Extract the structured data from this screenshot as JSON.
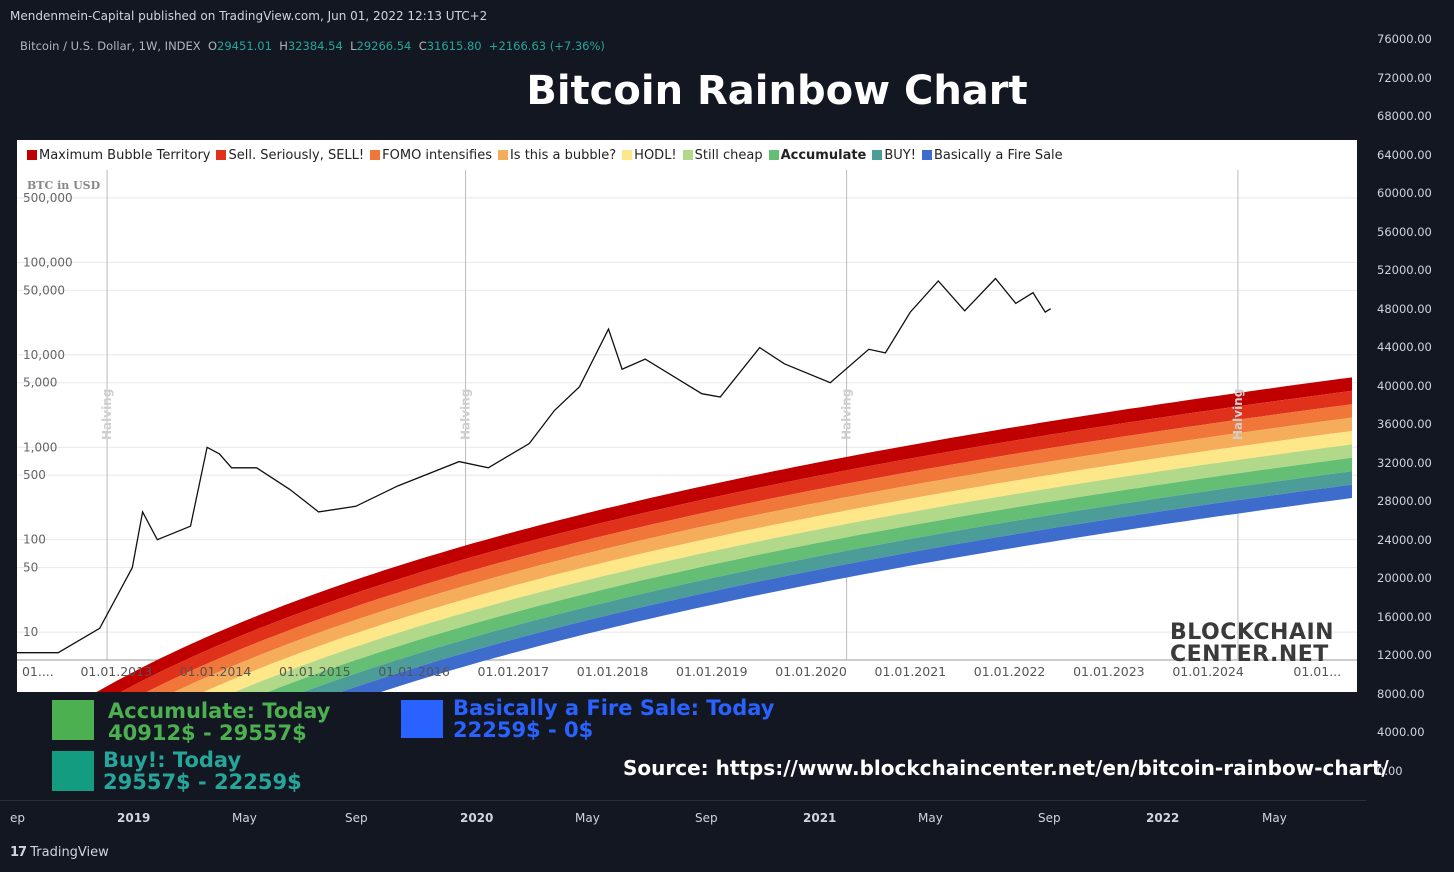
{
  "publisher": "Mendenmein-Capital published on TradingView.com, Jun 01, 2022 12:13 UTC+2",
  "symbol": {
    "name": "Bitcoin / U.S. Dollar, 1W, INDEX",
    "o_label": "O",
    "o": "29451.01",
    "h_label": "H",
    "h": "32384.54",
    "l_label": "L",
    "l": "29266.54",
    "c_label": "C",
    "c": "31615.80",
    "change": "+2166.63 (+7.36%)"
  },
  "title": "Bitcoin Rainbow Chart",
  "price_axis": [
    "76000.00",
    "72000.00",
    "68000.00",
    "64000.00",
    "60000.00",
    "56000.00",
    "52000.00",
    "48000.00",
    "44000.00",
    "40000.00",
    "36000.00",
    "32000.00",
    "28000.00",
    "24000.00",
    "20000.00",
    "16000.00",
    "12000.00",
    "8000.00",
    "4000.00",
    "0.00"
  ],
  "time_axis": [
    {
      "label": "ep",
      "bold": false
    },
    {
      "label": "2019",
      "bold": true
    },
    {
      "label": "May",
      "bold": false
    },
    {
      "label": "Sep",
      "bold": false
    },
    {
      "label": "2020",
      "bold": true
    },
    {
      "label": "May",
      "bold": false
    },
    {
      "label": "Sep",
      "bold": false
    },
    {
      "label": "2021",
      "bold": true
    },
    {
      "label": "May",
      "bold": false
    },
    {
      "label": "Sep",
      "bold": false
    },
    {
      "label": "2022",
      "bold": true
    },
    {
      "label": "May",
      "bold": false
    }
  ],
  "chart_data": {
    "type": "area",
    "title": "Bitcoin Rainbow Chart",
    "ylabel": "BTC in USD",
    "y_scale": "log",
    "ylim": [
      5,
      1000000
    ],
    "y_ticks": [
      "500,000",
      "100,000",
      "50,000",
      "10,000",
      "5,000",
      "1,000",
      "500",
      "100",
      "50",
      "10"
    ],
    "x_ticks": [
      "01....",
      "01.01.2013",
      "01.01.2014",
      "01.01.2015",
      "01.01.2016",
      "01.01.2017",
      "01.01.2018",
      "01.01.2019",
      "01.01.2020",
      "01.01.2021",
      "01.01.2022",
      "01.01.2023",
      "01.01.2024",
      "01.01..."
    ],
    "halving_label": "Halving",
    "halvings": [
      "2012-11-28",
      "2016-07-09",
      "2020-05-11",
      "2024-04-20"
    ],
    "legend_position": "top-left",
    "bands": [
      {
        "name": "Maximum Bubble Territory",
        "color": "#c00000",
        "bold": false
      },
      {
        "name": "Sell. Seriously, SELL!",
        "color": "#e0311b",
        "bold": false
      },
      {
        "name": "FOMO intensifies",
        "color": "#f0763a",
        "bold": false
      },
      {
        "name": "Is this a bubble?",
        "color": "#f5ad5c",
        "bold": false
      },
      {
        "name": "HODL!",
        "color": "#fde788",
        "bold": false
      },
      {
        "name": "Still cheap",
        "color": "#b2d98a",
        "bold": false
      },
      {
        "name": "Accumulate",
        "color": "#64be73",
        "bold": true
      },
      {
        "name": "BUY!",
        "color": "#4c9c98",
        "bold": false
      },
      {
        "name": "Basically a Fire Sale",
        "color": "#3e6ccd",
        "bold": false
      }
    ],
    "price_series": {
      "name": "BTC price",
      "points": [
        [
          "2012-01-01",
          6
        ],
        [
          "2012-06-01",
          6
        ],
        [
          "2012-11-01",
          11
        ],
        [
          "2013-03-01",
          50
        ],
        [
          "2013-04-08",
          200
        ],
        [
          "2013-06-01",
          100
        ],
        [
          "2013-10-01",
          140
        ],
        [
          "2013-12-01",
          1000
        ],
        [
          "2014-01-15",
          850
        ],
        [
          "2014-03-01",
          600
        ],
        [
          "2014-06-01",
          600
        ],
        [
          "2014-10-01",
          350
        ],
        [
          "2015-01-15",
          200
        ],
        [
          "2015-06-01",
          230
        ],
        [
          "2015-11-01",
          380
        ],
        [
          "2016-06-15",
          700
        ],
        [
          "2016-10-01",
          600
        ],
        [
          "2017-03-01",
          1100
        ],
        [
          "2017-06-01",
          2500
        ],
        [
          "2017-09-01",
          4500
        ],
        [
          "2017-12-17",
          19000
        ],
        [
          "2018-02-05",
          7000
        ],
        [
          "2018-05-01",
          9000
        ],
        [
          "2018-11-25",
          3800
        ],
        [
          "2019-02-01",
          3500
        ],
        [
          "2019-06-26",
          12000
        ],
        [
          "2019-09-25",
          8000
        ],
        [
          "2020-03-12",
          5000
        ],
        [
          "2020-08-01",
          11500
        ],
        [
          "2020-10-01",
          10500
        ],
        [
          "2021-01-01",
          29000
        ],
        [
          "2021-04-14",
          63000
        ],
        [
          "2021-07-20",
          30000
        ],
        [
          "2021-11-10",
          67000
        ],
        [
          "2022-01-24",
          36000
        ],
        [
          "2022-03-28",
          47000
        ],
        [
          "2022-05-12",
          29000
        ],
        [
          "2022-06-01",
          31600
        ]
      ]
    }
  },
  "bottom_legend": [
    {
      "title": "Accumulate: Today",
      "range": "40912$ - 29557$",
      "color": "#4caf50",
      "text_color": "#4caf50"
    },
    {
      "title": "Buy!: Today",
      "range": "29557$ - 22259$",
      "color": "#139c80",
      "text_color": "#26a69a"
    },
    {
      "title": "Basically a Fire Sale: Today",
      "range": "22259$ - 0$",
      "color": "#2962ff",
      "text_color": "#2962ff"
    }
  ],
  "source": "Source: https://www.blockchaincenter.net/en/bitcoin-rainbow-chart/",
  "logo": {
    "line1": "BLOCKCHAIN",
    "line2": "CENTER.NET"
  },
  "tv_brand": "TradingView"
}
